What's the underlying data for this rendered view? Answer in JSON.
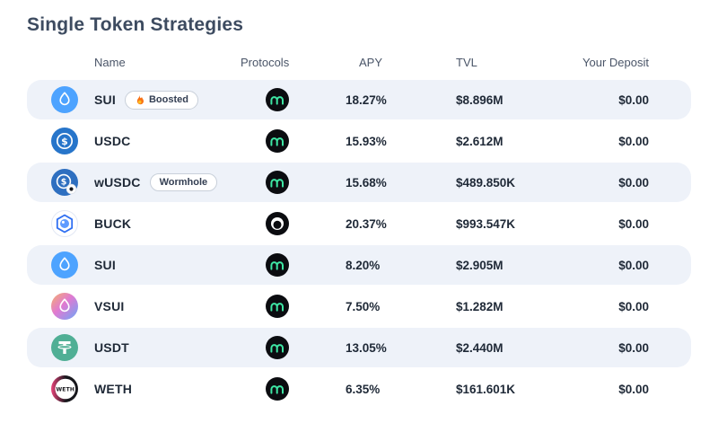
{
  "page": {
    "title": "Single Token Strategies"
  },
  "table": {
    "headers": {
      "name": "Name",
      "protocols": "Protocols",
      "apy": "APY",
      "tvl": "TVL",
      "deposit": "Your Deposit"
    },
    "rows": [
      {
        "name": "SUI",
        "token_icon": "sui-token-icon",
        "badge": {
          "label": "Boosted",
          "icon": "flame-icon"
        },
        "protocol_icon": "navi-protocol-icon",
        "apy": "18.27%",
        "tvl": "$8.896M",
        "deposit": "$0.00"
      },
      {
        "name": "USDC",
        "token_icon": "usdc-token-icon",
        "badge": null,
        "protocol_icon": "navi-protocol-icon",
        "apy": "15.93%",
        "tvl": "$2.612M",
        "deposit": "$0.00"
      },
      {
        "name": "wUSDC",
        "token_icon": "wusdc-token-icon",
        "badge": {
          "label": "Wormhole",
          "icon": null
        },
        "protocol_icon": "navi-protocol-icon",
        "apy": "15.68%",
        "tvl": "$489.850K",
        "deposit": "$0.00"
      },
      {
        "name": "BUCK",
        "token_icon": "buck-token-icon",
        "badge": null,
        "protocol_icon": "bucket-protocol-icon",
        "apy": "20.37%",
        "tvl": "$993.547K",
        "deposit": "$0.00"
      },
      {
        "name": "SUI",
        "token_icon": "sui-token-icon",
        "badge": null,
        "protocol_icon": "navi-protocol-icon",
        "apy": "8.20%",
        "tvl": "$2.905M",
        "deposit": "$0.00"
      },
      {
        "name": "VSUI",
        "token_icon": "vsui-token-icon",
        "badge": null,
        "protocol_icon": "navi-protocol-icon",
        "apy": "7.50%",
        "tvl": "$1.282M",
        "deposit": "$0.00"
      },
      {
        "name": "USDT",
        "token_icon": "usdt-token-icon",
        "badge": null,
        "protocol_icon": "navi-protocol-icon",
        "apy": "13.05%",
        "tvl": "$2.440M",
        "deposit": "$0.00"
      },
      {
        "name": "WETH",
        "token_icon": "weth-token-icon",
        "badge": null,
        "protocol_icon": "navi-protocol-icon",
        "apy": "6.35%",
        "tvl": "$161.601K",
        "deposit": "$0.00"
      }
    ]
  },
  "colors": {
    "title_text": "#3d4b60",
    "row_alt_bg": "#eef2f9",
    "sui_blue": "#4da3ff",
    "usdc_blue": "#2775ca",
    "wusdc_blue": "#2e6fc0",
    "buck_blue": "#2f6ff2",
    "usdt_green": "#50af95",
    "weth_pink": "#e8437a",
    "navi_green": "#3ee6a4",
    "flame_orange": "#f97316",
    "badge_border": "#c9d0da"
  }
}
